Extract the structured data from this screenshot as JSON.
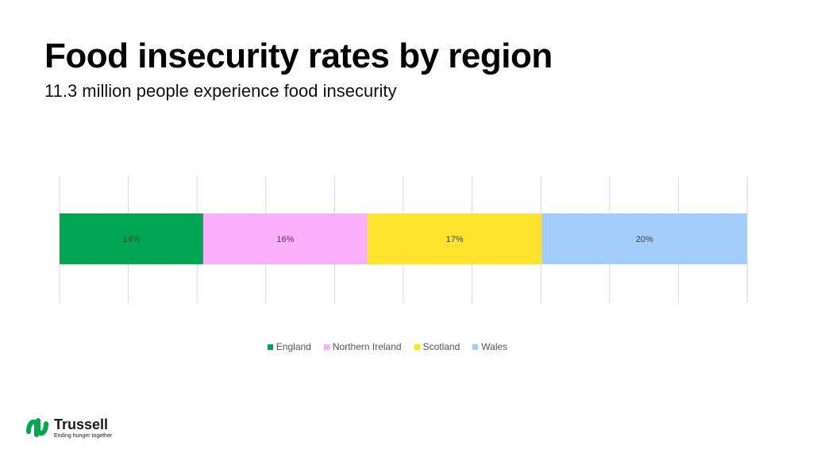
{
  "header": {
    "title": "Food insecurity rates by region",
    "subtitle": "11.3 million people experience food insecurity"
  },
  "chart_data": {
    "type": "bar",
    "orientation": "horizontal",
    "stacked": true,
    "categories": [
      ""
    ],
    "series": [
      {
        "name": "England",
        "values": [
          14
        ],
        "label": "14%",
        "color": "#00a651"
      },
      {
        "name": "Northern Ireland",
        "values": [
          16
        ],
        "label": "16%",
        "color": "#fcb0fb"
      },
      {
        "name": "Scotland",
        "values": [
          17
        ],
        "label": "17%",
        "color": "#ffe32d"
      },
      {
        "name": "Wales",
        "values": [
          20
        ],
        "label": "20%",
        "color": "#a3cdfb"
      }
    ],
    "xlim": [
      0,
      67
    ],
    "grid": true,
    "legend": "bottom"
  },
  "logo": {
    "name": "Trussell",
    "tagline": "Ending hunger together",
    "color": "#00a651"
  }
}
